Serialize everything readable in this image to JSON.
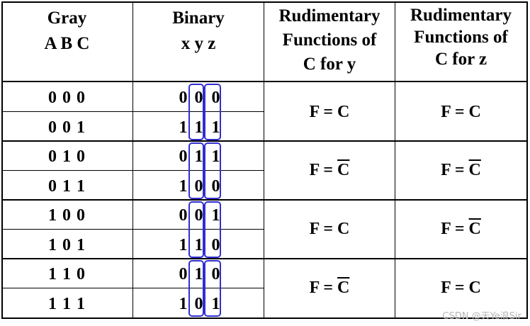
{
  "headers": {
    "gray": [
      "Gray",
      "A B C"
    ],
    "binary": [
      "Binary",
      "x y z"
    ],
    "fy": [
      "Rudimentary",
      "Functions of",
      "C for y"
    ],
    "fz": [
      "Rudimentary",
      "Functions of",
      "C for z"
    ]
  },
  "rows": [
    {
      "gray": "0 0 0",
      "bits": [
        "0",
        "0",
        "0"
      ]
    },
    {
      "gray": "0 0 1",
      "bits": [
        "1",
        "1",
        "1"
      ]
    },
    {
      "gray": "0 1 0",
      "bits": [
        "0",
        "1",
        "1"
      ]
    },
    {
      "gray": "0 1 1",
      "bits": [
        "1",
        "0",
        "0"
      ]
    },
    {
      "gray": "1 0 0",
      "bits": [
        "0",
        "0",
        "1"
      ]
    },
    {
      "gray": "1 0 1",
      "bits": [
        "1",
        "1",
        "0"
      ]
    },
    {
      "gray": "1 1 0",
      "bits": [
        "0",
        "1",
        "0"
      ]
    },
    {
      "gray": "1 1 1",
      "bits": [
        "1",
        "0",
        "1"
      ]
    }
  ],
  "groups": [
    {
      "fy": {
        "lhs": "F = ",
        "var": "C",
        "negated": false
      },
      "fz": {
        "lhs": "F = ",
        "var": "C",
        "negated": false
      }
    },
    {
      "fy": {
        "lhs": "F = ",
        "var": "C",
        "negated": true
      },
      "fz": {
        "lhs": "F = ",
        "var": "C",
        "negated": true
      }
    },
    {
      "fy": {
        "lhs": "F = ",
        "var": "C",
        "negated": false
      },
      "fz": {
        "lhs": "F = ",
        "var": "C",
        "negated": true
      }
    },
    {
      "fy": {
        "lhs": "F = ",
        "var": "C",
        "negated": true
      },
      "fz": {
        "lhs": "F = ",
        "var": "C",
        "negated": false
      }
    }
  ],
  "watermark": "CSDN @天Ye浪Sir",
  "colors": {
    "highlight_box": "#2f2fd0"
  }
}
